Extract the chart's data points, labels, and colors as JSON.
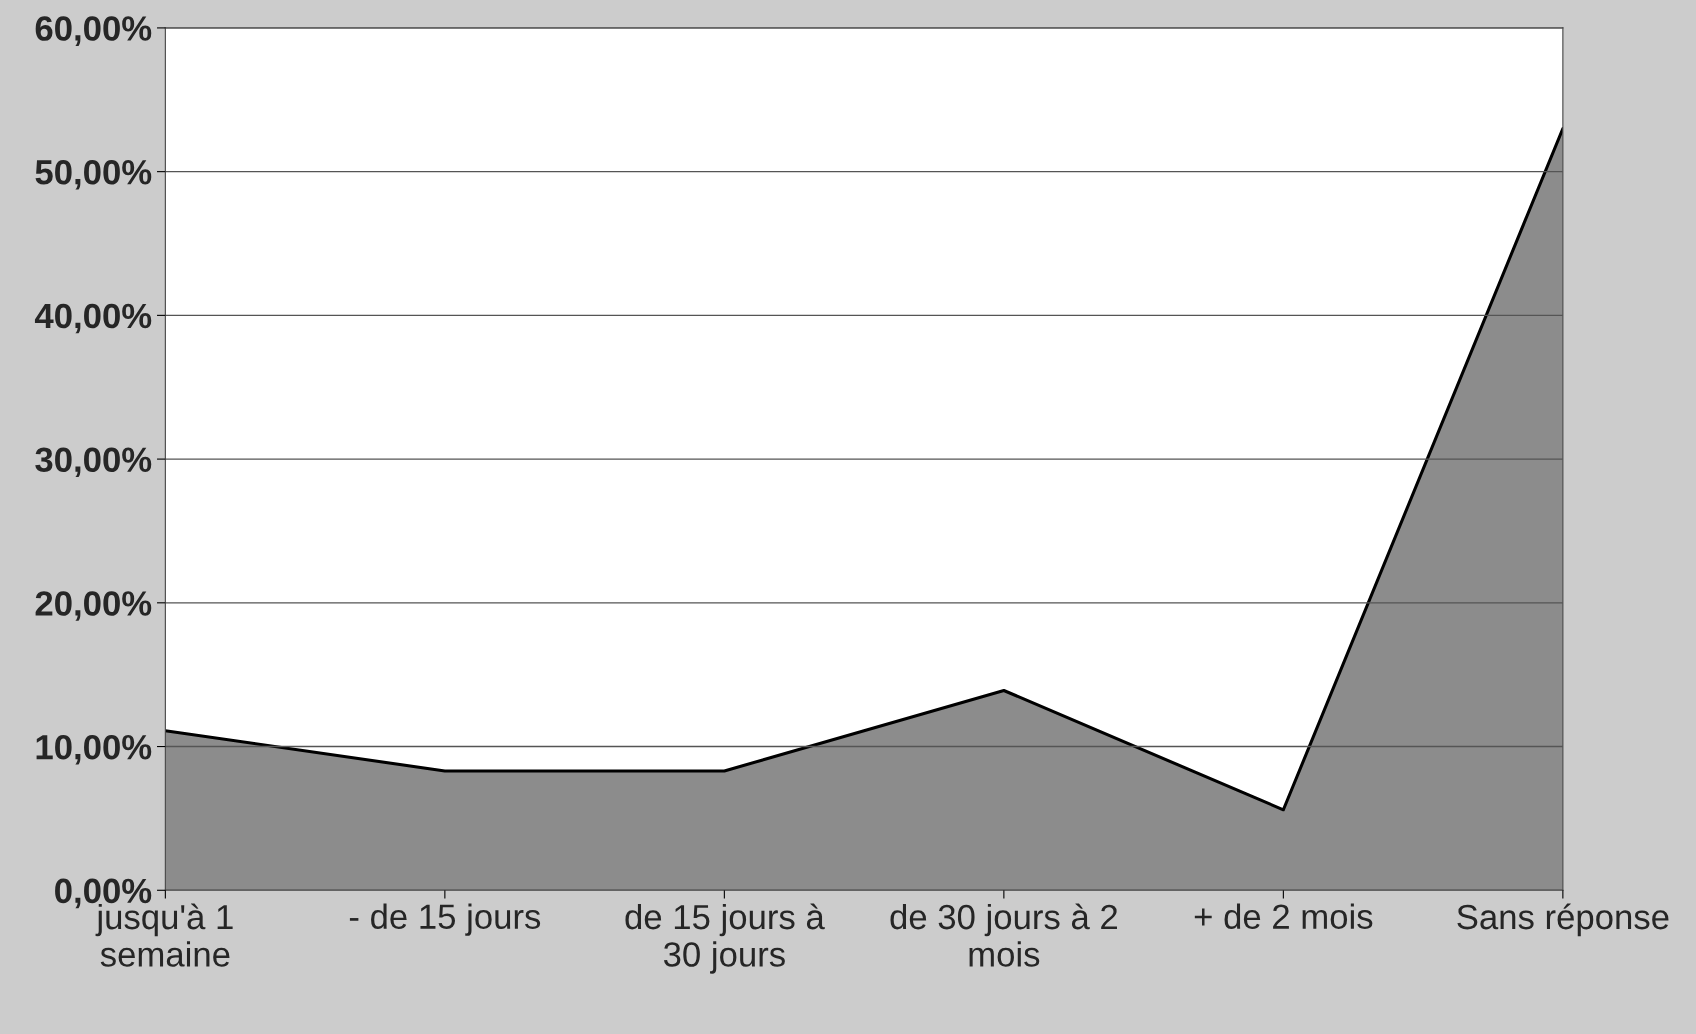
{
  "chart_data": {
    "type": "area",
    "categories": [
      "jusqu'à 1\nsemaine",
      "- de 15 jours",
      "de 15 jours à\n30 jours",
      "de 30 jours à 2\nmois",
      "+ de 2 mois",
      "Sans réponse"
    ],
    "series": [
      {
        "color": "#8c8c8c",
        "values": [
          11.1,
          8.3,
          8.3,
          13.9,
          5.6,
          53
        ]
      }
    ],
    "ylim": [
      0,
      60
    ],
    "yticks": [
      {
        "value": 0,
        "label": "0,00%"
      },
      {
        "value": 10,
        "label": "10,00%"
      },
      {
        "value": 20,
        "label": "20,00%"
      },
      {
        "value": 30,
        "label": "30,00%"
      },
      {
        "value": 40,
        "label": "40,00%"
      },
      {
        "value": 50,
        "label": "50,00%"
      },
      {
        "value": 60,
        "label": "60,00%"
      }
    ],
    "grid": "y",
    "legend": false
  }
}
